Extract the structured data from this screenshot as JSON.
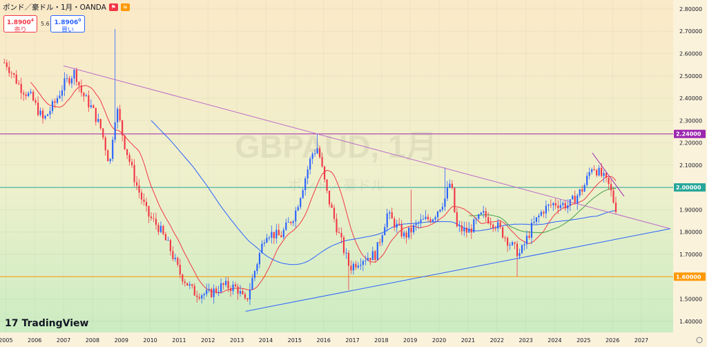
{
  "header": {
    "symbol_title": "ポンド／豪ドル・1月・OANDA",
    "sell_price": "1.8900",
    "sell_price_sup": "4",
    "sell_label": "売り",
    "spread": "5.6",
    "buy_price": "1.8906",
    "buy_price_sup": "0",
    "buy_label": "買い"
  },
  "watermark": {
    "symbol": "GBPAUD, 1月",
    "name": "ポンド／豪ドル"
  },
  "logo": {
    "mark": "17",
    "text": "TradingView"
  },
  "colors": {
    "up": "#2962ff",
    "down": "#f23645",
    "ma_short": "#f23645",
    "ma_long": "#2962ff",
    "ma_green": "#43a047",
    "purple": "#9c27b0",
    "green_line": "#26a69a",
    "orange_line": "#ff9800"
  },
  "chart_data": {
    "type": "candlestick",
    "title": "GBPAUD, 1月",
    "subtitle": "ポンド／豪ドル",
    "x_ticks": [
      "2005",
      "2006",
      "2007",
      "2008",
      "2009",
      "2010",
      "2011",
      "2012",
      "2013",
      "2014",
      "2015",
      "2016",
      "2017",
      "2018",
      "2019",
      "2020",
      "2021",
      "2022",
      "2023",
      "2024",
      "2025",
      "2026",
      "2027"
    ],
    "y_ticks": [
      "2.80000",
      "2.70000",
      "2.60000",
      "2.50000",
      "2.40000",
      "2.30000",
      "2.20000",
      "2.10000",
      "2.00000",
      "1.90000",
      "1.80000",
      "1.70000",
      "1.60000",
      "1.50000",
      "1.40000"
    ],
    "ylim": [
      1.35,
      2.84
    ],
    "xlim": [
      2004.8,
      2028.1
    ],
    "horizontal_lines": [
      {
        "value": 2.24,
        "label": "2.24000",
        "color": "#9c27b0"
      },
      {
        "value": 2.0,
        "label": "2.00000",
        "color": "#26a69a"
      },
      {
        "value": 1.6,
        "label": "1.60000",
        "color": "#ff9800"
      }
    ],
    "trendlines": [
      {
        "name": "upper",
        "from": [
          2007.0,
          2.545
        ],
        "to": [
          2028.0,
          1.815
        ],
        "color": "#ba68c8"
      },
      {
        "name": "lower",
        "from": [
          2013.3,
          1.445
        ],
        "to": [
          2028.0,
          1.815
        ],
        "color": "#2962ff"
      },
      {
        "name": "recent",
        "from": [
          2025.3,
          2.155
        ],
        "to": [
          2026.4,
          1.96
        ],
        "color": "#9c27b0"
      }
    ],
    "anchors": [
      [
        2005.0,
        2.56
      ],
      [
        2005.5,
        2.45
      ],
      [
        2005.9,
        2.4
      ],
      [
        2006.3,
        2.3
      ],
      [
        2006.7,
        2.38
      ],
      [
        2007.0,
        2.46
      ],
      [
        2007.4,
        2.52
      ],
      [
        2007.6,
        2.43
      ],
      [
        2008.0,
        2.35
      ],
      [
        2008.3,
        2.26
      ],
      [
        2008.6,
        2.1
      ],
      [
        2008.75,
        2.3
      ],
      [
        2008.85,
        2.35
      ],
      [
        2009.1,
        2.2
      ],
      [
        2009.5,
        2.02
      ],
      [
        2009.9,
        1.88
      ],
      [
        2010.3,
        1.82
      ],
      [
        2010.7,
        1.72
      ],
      [
        2011.0,
        1.62
      ],
      [
        2011.5,
        1.53
      ],
      [
        2012.0,
        1.52
      ],
      [
        2012.5,
        1.56
      ],
      [
        2013.0,
        1.55
      ],
      [
        2013.3,
        1.48
      ],
      [
        2013.6,
        1.62
      ],
      [
        2014.0,
        1.8
      ],
      [
        2014.5,
        1.78
      ],
      [
        2015.0,
        1.88
      ],
      [
        2015.6,
        2.15
      ],
      [
        2015.8,
        2.18
      ],
      [
        2016.1,
        1.98
      ],
      [
        2016.5,
        1.8
      ],
      [
        2016.9,
        1.64
      ],
      [
        2017.3,
        1.68
      ],
      [
        2017.8,
        1.7
      ],
      [
        2018.2,
        1.88
      ],
      [
        2018.8,
        1.78
      ],
      [
        2019.3,
        1.84
      ],
      [
        2019.8,
        1.87
      ],
      [
        2020.2,
        1.95
      ],
      [
        2020.4,
        2.03
      ],
      [
        2020.6,
        1.82
      ],
      [
        2021.0,
        1.8
      ],
      [
        2021.5,
        1.88
      ],
      [
        2022.0,
        1.83
      ],
      [
        2022.5,
        1.74
      ],
      [
        2022.8,
        1.7
      ],
      [
        2023.2,
        1.82
      ],
      [
        2023.6,
        1.9
      ],
      [
        2024.0,
        1.93
      ],
      [
        2024.5,
        1.92
      ],
      [
        2025.0,
        2.0
      ],
      [
        2025.3,
        2.1
      ],
      [
        2025.7,
        2.04
      ],
      [
        2025.9,
        2.0
      ],
      [
        2026.1,
        1.91
      ]
    ]
  }
}
